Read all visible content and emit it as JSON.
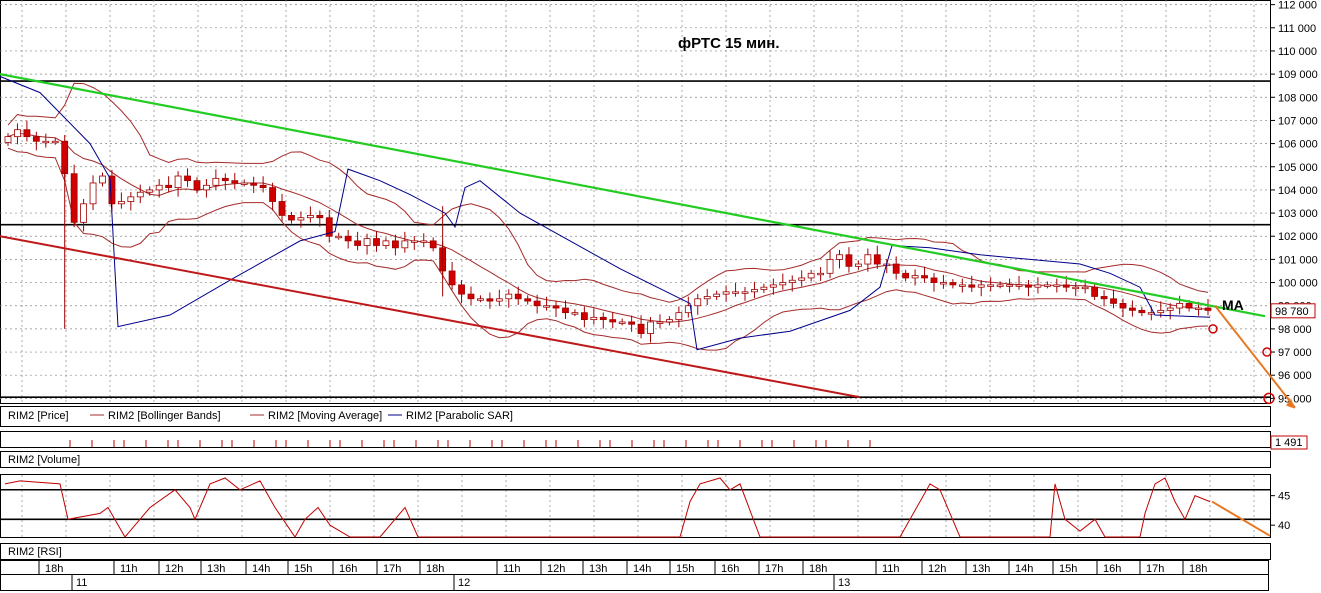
{
  "chart_data": {
    "type": "candlestick",
    "title": "фРТС   15 мин.",
    "annotation": "MA",
    "price": {
      "ylim": [
        94800,
        112200
      ],
      "yticks": [
        95000,
        96000,
        97000,
        98000,
        99000,
        100000,
        101000,
        102000,
        103000,
        104000,
        105000,
        106000,
        107000,
        108000,
        109000,
        110000,
        111000,
        112000
      ],
      "ytick_labels": [
        "95 000",
        "96 000",
        "97 000",
        "98 000",
        "99 000",
        "100 000",
        "101 000",
        "102 000",
        "103 000",
        "104 000",
        "105 000",
        "106 000",
        "107 000",
        "108 000",
        "109 000",
        "110 000",
        "111 000",
        "112 000"
      ],
      "last_price_label": "98 780",
      "horizontal_levels": [
        108700,
        102500,
        95050
      ],
      "green_trendline": [
        [
          0,
          109000
        ],
        [
          1265,
          98550
        ]
      ],
      "red_trendline": [
        [
          0,
          102000
        ],
        [
          860,
          95050
        ]
      ],
      "candles": [
        106300,
        106600,
        106300,
        106100,
        106100,
        106100,
        104700,
        102600,
        103400,
        104300,
        104600,
        103400,
        103500,
        103700,
        103900,
        104000,
        104200,
        104100,
        104600,
        104400,
        104000,
        104200,
        104500,
        104400,
        104300,
        104300,
        104200,
        104100,
        103500,
        102900,
        102700,
        102800,
        102900,
        102800,
        102000,
        102000,
        101800,
        101600,
        101900,
        101600,
        101800,
        101500,
        101800,
        101800,
        101800,
        101500,
        100500,
        99900,
        99500,
        99300,
        99300,
        99200,
        99300,
        99500,
        99300,
        99200,
        99000,
        99000,
        98900,
        98700,
        98700,
        98400,
        98500,
        98400,
        98300,
        98300,
        98200,
        97800,
        98300,
        98300,
        98400,
        98700,
        99000,
        99300,
        99400,
        99500,
        99600,
        99600,
        99600,
        99700,
        99800,
        99900,
        100000,
        100100,
        100200,
        100400,
        100400,
        101000,
        101200,
        100700,
        100800,
        101200,
        100800,
        100800,
        100400,
        100200,
        100300,
        100200,
        100000,
        100000,
        99900,
        99900,
        99800,
        99900,
        99900,
        99900,
        99900,
        99900,
        99800,
        99900,
        99900,
        99900,
        99800,
        99800,
        99800,
        99400,
        99300,
        99100,
        98900,
        98800,
        98700,
        98700,
        98800,
        98900,
        99100,
        98900,
        98900,
        98800
      ],
      "series": [
        {
          "name": "RIM2 [Price]",
          "color": "#cc0000"
        },
        {
          "name": "RIM2 [Bollinger Bands]",
          "color": "#a52a2a"
        },
        {
          "name": "RIM2 [Moving Average]",
          "color": "#a52a2a"
        },
        {
          "name": "RIM2 [Parabolic SAR]",
          "color": "#00008b"
        }
      ],
      "sar": [
        [
          0,
          108900
        ],
        [
          40,
          108200
        ],
        [
          90,
          106000
        ],
        [
          110,
          104500
        ],
        [
          118,
          98100
        ],
        [
          170,
          98600
        ],
        [
          230,
          100100
        ],
        [
          300,
          101800
        ],
        [
          335,
          102200
        ],
        [
          348,
          104900
        ],
        [
          380,
          104400
        ],
        [
          410,
          103800
        ],
        [
          445,
          103000
        ],
        [
          455,
          102400
        ],
        [
          465,
          104100
        ],
        [
          480,
          104400
        ],
        [
          520,
          103000
        ],
        [
          620,
          100600
        ],
        [
          690,
          99100
        ],
        [
          697,
          97100
        ],
        [
          740,
          97600
        ],
        [
          790,
          97900
        ],
        [
          850,
          98800
        ],
        [
          880,
          99800
        ],
        [
          892,
          101600
        ],
        [
          930,
          101500
        ],
        [
          980,
          101200
        ],
        [
          1030,
          101000
        ],
        [
          1080,
          100800
        ],
        [
          1110,
          100400
        ],
        [
          1140,
          99800
        ],
        [
          1155,
          98600
        ],
        [
          1210,
          98500
        ]
      ]
    },
    "volume": {
      "name": "RIM2 [Volume]",
      "last_label": "1 491"
    },
    "rsi": {
      "name": "RIM2 [RSI]",
      "yticks": [
        40,
        45
      ],
      "levels": [
        41,
        46
      ],
      "values": [
        [
          5,
          47
        ],
        [
          20,
          47.5
        ],
        [
          60,
          47
        ],
        [
          68,
          41
        ],
        [
          100,
          42
        ],
        [
          108,
          43
        ],
        [
          125,
          38
        ],
        [
          150,
          43
        ],
        [
          175,
          46
        ],
        [
          190,
          43
        ],
        [
          195,
          41
        ],
        [
          210,
          47
        ],
        [
          225,
          48
        ],
        [
          240,
          46
        ],
        [
          260,
          47.5
        ],
        [
          275,
          43
        ],
        [
          295,
          38
        ],
        [
          305,
          41
        ],
        [
          318,
          43
        ],
        [
          330,
          40
        ],
        [
          350,
          38
        ],
        [
          380,
          38
        ],
        [
          395,
          41
        ],
        [
          405,
          43
        ],
        [
          418,
          38
        ],
        [
          480,
          38
        ],
        [
          540,
          38
        ],
        [
          640,
          38
        ],
        [
          680,
          38
        ],
        [
          690,
          44
        ],
        [
          700,
          47
        ],
        [
          720,
          48
        ],
        [
          730,
          46
        ],
        [
          740,
          47
        ],
        [
          760,
          38
        ],
        [
          830,
          38
        ],
        [
          900,
          38
        ],
        [
          930,
          47
        ],
        [
          940,
          46
        ],
        [
          960,
          38
        ],
        [
          1000,
          38
        ],
        [
          1050,
          38
        ],
        [
          1055,
          47
        ],
        [
          1065,
          41
        ],
        [
          1080,
          39
        ],
        [
          1095,
          41
        ],
        [
          1105,
          38
        ],
        [
          1140,
          38
        ],
        [
          1145,
          42
        ],
        [
          1155,
          47
        ],
        [
          1165,
          48
        ],
        [
          1175,
          44
        ],
        [
          1185,
          41
        ],
        [
          1195,
          45
        ],
        [
          1210,
          44
        ]
      ]
    },
    "x_hour_labels": [
      "18h",
      "11h",
      "12h",
      "13h",
      "14h",
      "15h",
      "16h",
      "17h",
      "18h",
      "11h",
      "12h",
      "13h",
      "14h",
      "15h",
      "16h",
      "17h",
      "18h",
      "11h",
      "12h",
      "13h",
      "14h",
      "15h",
      "16h",
      "17h",
      "18h"
    ],
    "x_day_labels": [
      "11",
      "12",
      "13"
    ],
    "arrow_color": "#e87722",
    "target_circles": [
      98000,
      97000,
      95000
    ]
  }
}
